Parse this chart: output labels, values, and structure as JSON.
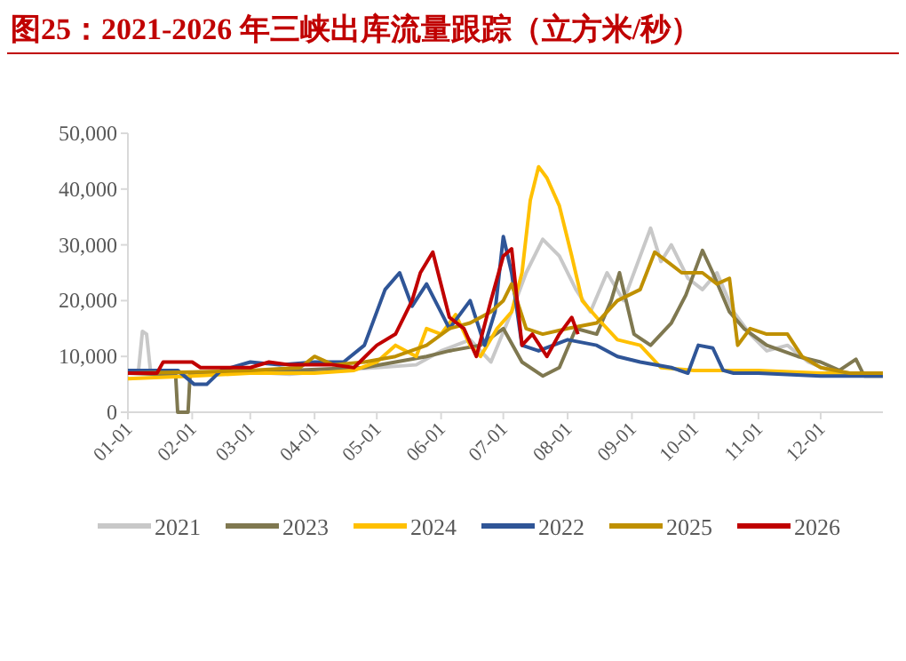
{
  "chart_data": {
    "type": "line",
    "title": "图25：2021-2026 年三峡出库流量跟踪（立方米/秒）",
    "xlim": [
      "--01-01",
      "--12-31"
    ],
    "xticks": [
      {
        "value": "--01-01",
        "label": "01-01"
      },
      {
        "value": "--02-01",
        "label": "02-01"
      },
      {
        "value": "--03-01",
        "label": "03-01"
      },
      {
        "value": "--04-01",
        "label": "04-01"
      },
      {
        "value": "--05-01",
        "label": "05-01"
      },
      {
        "value": "--06-01",
        "label": "06-01"
      },
      {
        "value": "--07-01",
        "label": "07-01"
      },
      {
        "value": "--08-01",
        "label": "08-01"
      },
      {
        "value": "--09-01",
        "label": "09-01"
      },
      {
        "value": "--10-01",
        "label": "10-01"
      },
      {
        "value": "--11-01",
        "label": "11-01"
      },
      {
        "value": "--12-01",
        "label": "12-01"
      }
    ],
    "ylim": [
      0,
      50000
    ],
    "yticks": [
      {
        "value": 0,
        "label": "0"
      },
      {
        "value": 10000,
        "label": "10,000"
      },
      {
        "value": 20000,
        "label": "20,000"
      },
      {
        "value": 30000,
        "label": "30,000"
      },
      {
        "value": 40000,
        "label": "40,000"
      },
      {
        "value": 50000,
        "label": "50,000"
      }
    ],
    "grid": false,
    "legend": "bottom",
    "line_style": "solid",
    "marker": "none",
    "series": [
      {
        "name": "2021",
        "color": "#c8c8c8",
        "x": [
          "--01-01",
          "--01-06",
          "--01-08",
          "--01-10",
          "--01-12",
          "--01-20",
          "--02-10",
          "--03-01",
          "--03-20",
          "--04-10",
          "--05-01",
          "--05-20",
          "--06-01",
          "--06-15",
          "--06-25",
          "--07-05",
          "--07-12",
          "--07-20",
          "--07-28",
          "--08-05",
          "--08-12",
          "--08-20",
          "--08-28",
          "--09-05",
          "--09-10",
          "--09-15",
          "--09-20",
          "--09-28",
          "--10-05",
          "--10-12",
          "--10-20",
          "--10-28",
          "--11-05",
          "--11-15",
          "--11-25",
          "--12-05",
          "--12-15",
          "--12-31"
        ],
        "values": [
          7000,
          7000,
          14500,
          14000,
          7000,
          6800,
          7000,
          7200,
          6800,
          7500,
          8000,
          8500,
          11000,
          13000,
          9000,
          18000,
          25000,
          31000,
          28000,
          22000,
          18000,
          25000,
          20000,
          28000,
          33000,
          27000,
          30000,
          24000,
          22000,
          25000,
          18000,
          14000,
          11000,
          12000,
          9000,
          7500,
          7000,
          6800
        ]
      },
      {
        "name": "2023",
        "color": "#7f7850",
        "x": [
          "--01-01",
          "--01-15",
          "--01-24",
          "--01-25",
          "--01-30",
          "--01-31",
          "--02-15",
          "--03-01",
          "--03-20",
          "--04-10",
          "--04-25",
          "--05-10",
          "--05-25",
          "--06-05",
          "--06-20",
          "--07-01",
          "--07-10",
          "--07-20",
          "--07-28",
          "--08-05",
          "--08-15",
          "--08-22",
          "--08-26",
          "--09-02",
          "--09-10",
          "--09-20",
          "--09-27",
          "--10-05",
          "--10-10",
          "--10-18",
          "--10-25",
          "--11-05",
          "--11-20",
          "--12-01",
          "--12-10",
          "--12-18",
          "--12-22",
          "--12-31"
        ],
        "values": [
          7000,
          6800,
          6800,
          0,
          0,
          7000,
          7000,
          7200,
          7500,
          7800,
          8000,
          9000,
          10000,
          11000,
          12000,
          15000,
          9000,
          6500,
          8000,
          15000,
          14000,
          20000,
          25000,
          14000,
          12000,
          16000,
          21000,
          29000,
          25000,
          18000,
          15000,
          12000,
          10000,
          9000,
          7500,
          9500,
          6500,
          6500
        ]
      },
      {
        "name": "2024",
        "color": "#ffc000",
        "x": [
          "--01-01",
          "--02-01",
          "--03-01",
          "--04-01",
          "--04-20",
          "--05-01",
          "--05-10",
          "--05-20",
          "--05-25",
          "--06-01",
          "--06-08",
          "--06-15",
          "--06-20",
          "--06-28",
          "--07-05",
          "--07-10",
          "--07-14",
          "--07-18",
          "--07-22",
          "--07-28",
          "--08-03",
          "--08-08",
          "--08-15",
          "--08-25",
          "--09-05",
          "--09-15",
          "--10-01",
          "--11-01",
          "--12-01",
          "--12-31"
        ],
        "values": [
          6000,
          6500,
          7000,
          7000,
          7500,
          9000,
          12000,
          10000,
          15000,
          14000,
          17500,
          12000,
          10000,
          15000,
          18000,
          25000,
          38000,
          44000,
          42000,
          37000,
          28000,
          20000,
          17000,
          13000,
          12000,
          8000,
          7500,
          7500,
          7000,
          7000
        ]
      },
      {
        "name": "2022",
        "color": "#2f5597",
        "x": [
          "--01-01",
          "--01-25",
          "--02-02",
          "--02-08",
          "--02-15",
          "--03-01",
          "--03-15",
          "--04-01",
          "--04-15",
          "--04-25",
          "--05-05",
          "--05-12",
          "--05-18",
          "--05-25",
          "--06-05",
          "--06-15",
          "--06-22",
          "--06-27",
          "--07-01",
          "--07-05",
          "--07-10",
          "--07-18",
          "--08-01",
          "--08-15",
          "--08-25",
          "--09-05",
          "--09-20",
          "--09-28",
          "--10-03",
          "--10-10",
          "--10-15",
          "--10-20",
          "--11-01",
          "--12-01",
          "--12-31"
        ],
        "values": [
          7500,
          7500,
          5000,
          5000,
          7500,
          9000,
          8500,
          9000,
          9000,
          12000,
          22000,
          25000,
          19000,
          23000,
          15000,
          20000,
          12000,
          18000,
          31500,
          25000,
          12000,
          11000,
          13000,
          12000,
          10000,
          9000,
          8000,
          7000,
          12000,
          11500,
          7500,
          7000,
          7000,
          6500,
          6500
        ]
      },
      {
        "name": "2025",
        "color": "#bf9000",
        "x": [
          "--01-01",
          "--02-01",
          "--03-01",
          "--03-25",
          "--04-01",
          "--04-10",
          "--04-25",
          "--05-10",
          "--05-25",
          "--06-05",
          "--06-15",
          "--06-25",
          "--07-01",
          "--07-05",
          "--07-12",
          "--07-20",
          "--08-01",
          "--08-15",
          "--08-25",
          "--09-05",
          "--09-12",
          "--09-18",
          "--09-25",
          "--10-05",
          "--10-12",
          "--10-18",
          "--10-22",
          "--10-28",
          "--11-05",
          "--11-15",
          "--11-22",
          "--12-01",
          "--12-15",
          "--12-31"
        ],
        "values": [
          7000,
          7200,
          7500,
          8000,
          10000,
          8500,
          9000,
          10000,
          12000,
          15000,
          16000,
          18000,
          20000,
          23000,
          15000,
          14000,
          15000,
          16000,
          20000,
          22000,
          28700,
          27000,
          25000,
          25000,
          23000,
          24000,
          12000,
          15000,
          14000,
          14000,
          10000,
          8000,
          7000,
          7000
        ]
      },
      {
        "name": "2026",
        "color": "#c00000",
        "x": [
          "--01-01",
          "--01-15",
          "--01-18",
          "--02-01",
          "--02-05",
          "--03-01",
          "--03-10",
          "--03-20",
          "--04-01",
          "--04-10",
          "--04-20",
          "--05-01",
          "--05-10",
          "--05-18",
          "--05-22",
          "--05-28",
          "--06-05",
          "--06-12",
          "--06-18",
          "--06-25",
          "--07-01",
          "--07-05",
          "--07-10",
          "--07-15",
          "--07-22",
          "--07-28",
          "--08-03",
          "--08-06"
        ],
        "values": [
          7000,
          7000,
          9000,
          9000,
          8000,
          8000,
          9000,
          8500,
          8500,
          8500,
          8000,
          12000,
          14000,
          20000,
          25000,
          28700,
          17000,
          15000,
          10000,
          20000,
          28000,
          29300,
          12000,
          14000,
          10000,
          14000,
          17000,
          14000
        ]
      }
    ]
  }
}
